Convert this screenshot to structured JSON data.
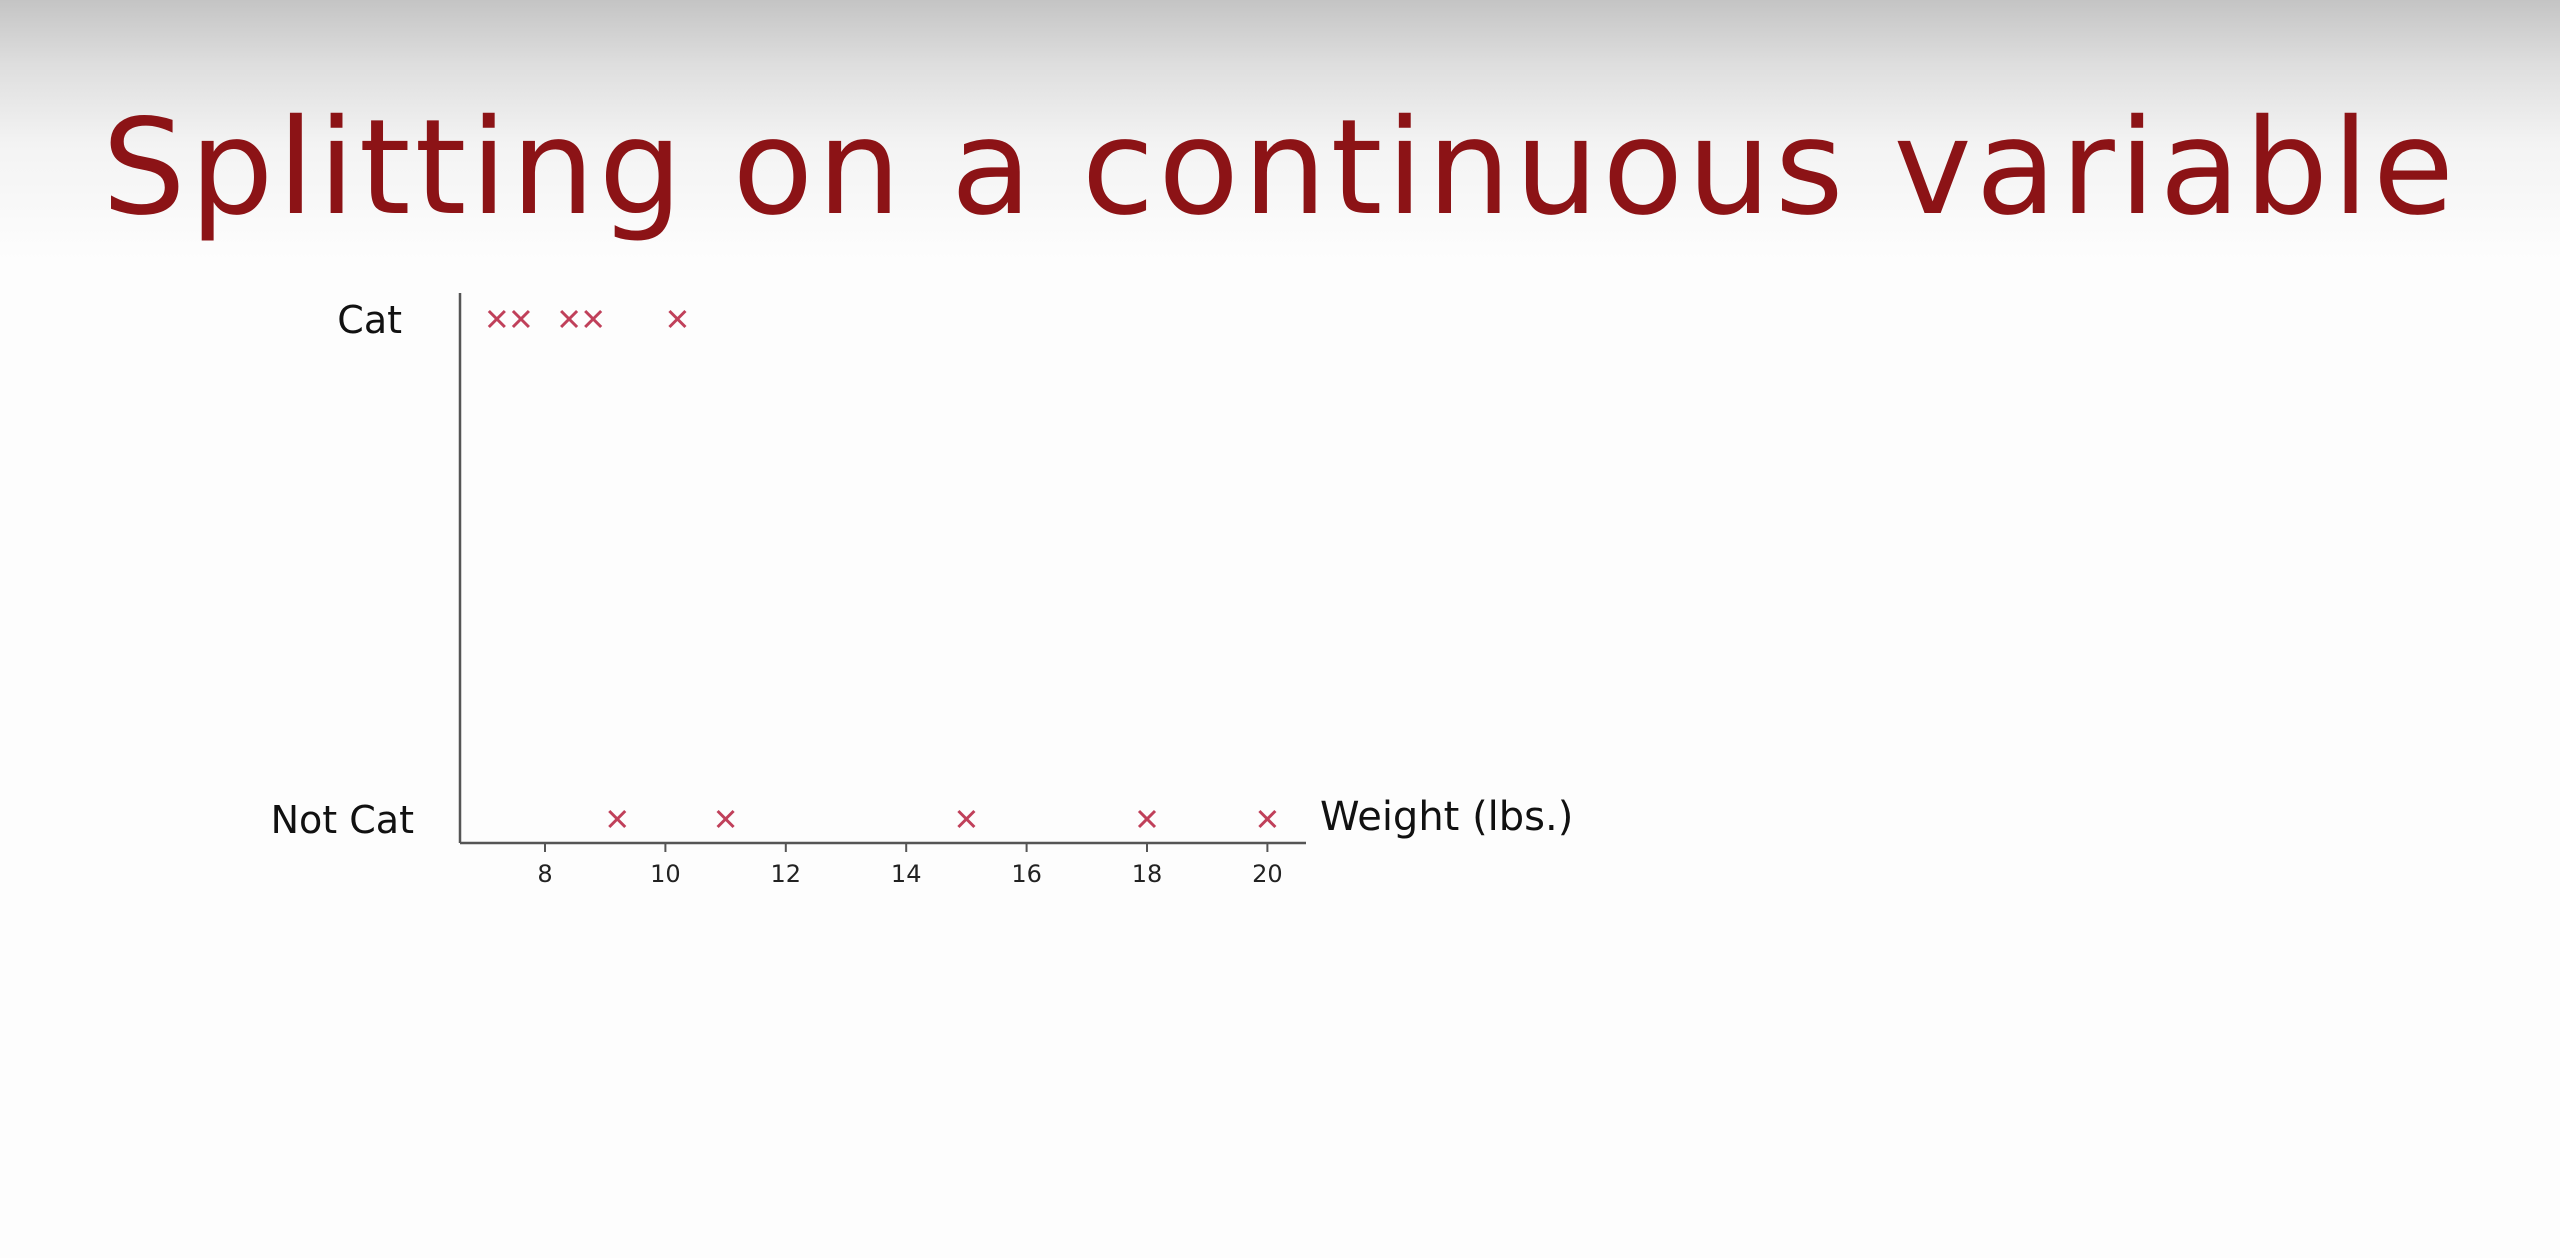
{
  "slide": {
    "title": "Splitting on a continuous variable"
  },
  "chart_data": {
    "type": "scatter",
    "title": "",
    "xlabel": "Weight (lbs.)",
    "ylabel": "",
    "xlim": [
      6.6,
      21.3
    ],
    "xticks": [
      8,
      10,
      12,
      14,
      16,
      18,
      20
    ],
    "y_categories": [
      "Not Cat",
      "Cat"
    ],
    "marker": "x",
    "marker_color": "#c0405a",
    "axis_color": "#555555",
    "grid": false,
    "legend": "none",
    "series": [
      {
        "points": [
          {
            "x": 7.2,
            "y": "Cat"
          },
          {
            "x": 7.6,
            "y": "Cat"
          },
          {
            "x": 8.4,
            "y": "Cat"
          },
          {
            "x": 8.8,
            "y": "Cat"
          },
          {
            "x": 10.2,
            "y": "Cat"
          },
          {
            "x": 9.2,
            "y": "Not Cat"
          },
          {
            "x": 11.0,
            "y": "Not Cat"
          },
          {
            "x": 15.0,
            "y": "Not Cat"
          },
          {
            "x": 18.0,
            "y": "Not Cat"
          },
          {
            "x": 20.0,
            "y": "Not Cat"
          }
        ]
      }
    ]
  }
}
